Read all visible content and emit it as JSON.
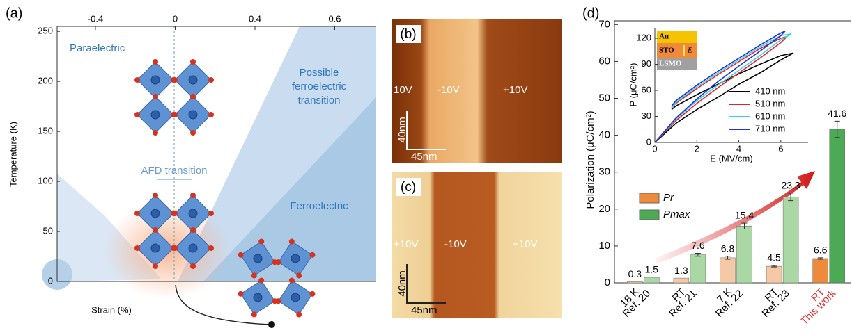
{
  "panel_labels": [
    "(a)",
    "(b)",
    "(c)",
    "(d)"
  ],
  "panel_b": {
    "labels": [
      "10V",
      "-10V",
      "+10V"
    ],
    "scale": [
      "40nm",
      "45nm"
    ]
  },
  "panel_c": {
    "labels": [
      "+10V",
      "-10V",
      "+10V"
    ],
    "scale": [
      "40nm",
      "45nm"
    ]
  },
  "chart_data": [
    {
      "type": "phase-diagram",
      "x_label": "Strain (%)",
      "y_label": "Temperature (K)",
      "top_tick_labels": [
        "-0.4",
        "0",
        "0.4",
        "0.6"
      ],
      "ylim": [
        0,
        255
      ],
      "yticks": [
        0,
        50,
        100,
        150,
        200,
        250
      ],
      "region_labels": {
        "paraelectric": "Paraelectric",
        "possible": [
          "Possible",
          "ferroelectric",
          "transition"
        ],
        "afd": "AFD transition",
        "ferroelectric": "Ferroelectric"
      }
    },
    {
      "type": "bar",
      "y_label": "Polarization (μC/cm²)",
      "categories": [
        [
          "18 K",
          "Ref. 20"
        ],
        [
          "RT",
          "Ref. 21"
        ],
        [
          "7 K",
          "Ref. 22"
        ],
        [
          "RT",
          "Ref. 23"
        ],
        [
          "RT",
          "This work"
        ]
      ],
      "category_colors": [
        "#000000",
        "#000000",
        "#000000",
        "#000000",
        "#e03030"
      ],
      "ylim": [
        0,
        71
      ],
      "yticks": [
        0,
        10,
        20,
        30,
        40,
        50,
        60,
        70
      ],
      "legend": "left",
      "series": [
        {
          "name": "Pr",
          "colors": [
            "#f6c9a6",
            "#f6c9a6",
            "#f6c9a6",
            "#f6c9a6",
            "#ee8a3c"
          ],
          "values": [
            0.3,
            1.3,
            6.8,
            4.5,
            6.6
          ],
          "errors": [
            null,
            null,
            0.4,
            0.2,
            0.2
          ]
        },
        {
          "name": "Pmax",
          "colors": [
            "#a9d8a4",
            "#a9d8a4",
            "#a9d8a4",
            "#a9d8a4",
            "#4caa55"
          ],
          "values": [
            1.5,
            7.6,
            15.4,
            23.3,
            41.6
          ],
          "errors": [
            null,
            0.4,
            0.8,
            1.0,
            2.2
          ]
        }
      ]
    },
    {
      "type": "line",
      "x_label": "E (MV/cm)",
      "y_label": "P (μC/cm²)",
      "xlim": [
        0,
        7.3
      ],
      "xticks": [
        0,
        2,
        4,
        6
      ],
      "ylim": [
        0,
        132
      ],
      "yticks": [
        0,
        30,
        60,
        90,
        120
      ],
      "legend": "lower right",
      "stack_labels": [
        "Au",
        "STO",
        "E",
        "LSMO"
      ],
      "series": [
        {
          "name": "410 nm",
          "color": "#000000",
          "x": [
            0,
            1,
            2,
            3,
            4,
            5,
            6,
            6.6,
            6,
            5,
            4,
            3,
            2,
            1,
            0.8
          ],
          "values": [
            0,
            22,
            38,
            52,
            67,
            80,
            95,
            103,
            100,
            90,
            79,
            67,
            55,
            42,
            38
          ]
        },
        {
          "name": "510 nm",
          "color": "#e8202a",
          "x": [
            0,
            1,
            2,
            3,
            4,
            5,
            6,
            6.3,
            6,
            5,
            4,
            3,
            2,
            1,
            0.8
          ],
          "values": [
            0,
            25,
            45,
            63,
            80,
            97,
            115,
            122,
            120,
            108,
            93,
            78,
            62,
            45,
            40
          ]
        },
        {
          "name": "610 nm",
          "color": "#30d8e0",
          "x": [
            0,
            1,
            2,
            3,
            4,
            5,
            6,
            6.5,
            6,
            5,
            4,
            3,
            2,
            1,
            0.8
          ],
          "values": [
            0,
            27,
            48,
            66,
            83,
            100,
            118,
            125,
            123,
            110,
            95,
            80,
            64,
            46,
            40
          ]
        },
        {
          "name": "710 nm",
          "color": "#2030e0",
          "x": [
            0,
            1,
            2,
            3,
            4,
            5,
            6,
            6.2,
            6,
            5,
            4,
            3,
            2,
            1,
            0.8
          ],
          "values": [
            0,
            28,
            50,
            70,
            88,
            105,
            123,
            128,
            126,
            112,
            97,
            82,
            66,
            48,
            42
          ]
        }
      ]
    }
  ]
}
